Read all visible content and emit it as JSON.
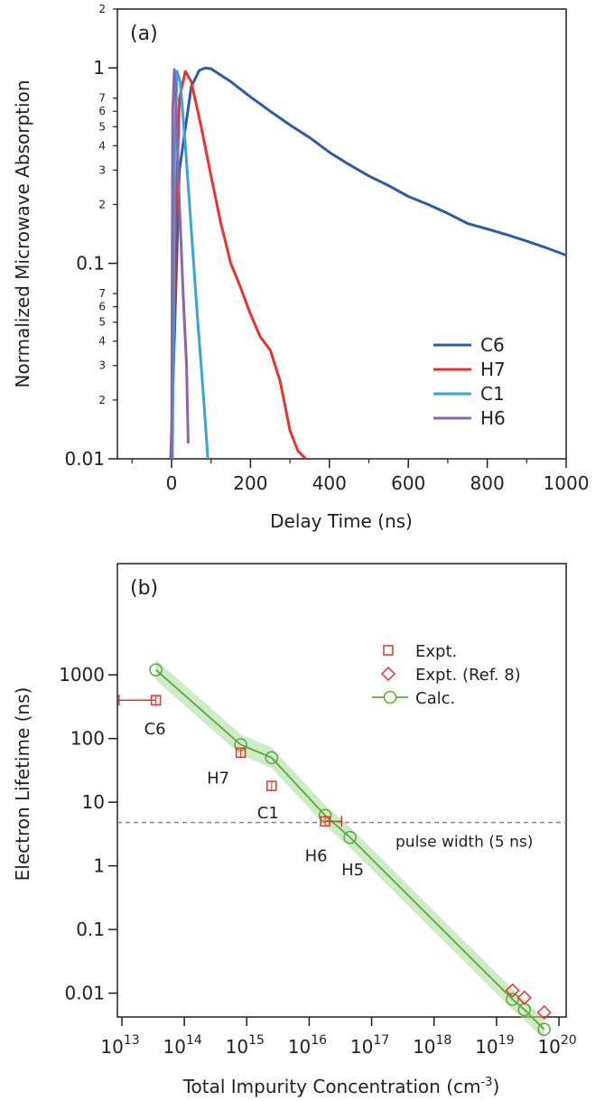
{
  "chart_data": [
    {
      "panel_label": "(a)",
      "type": "line",
      "xlabel": "Delay Time (ns)",
      "ylabel": "Normalized Microwave Absorption",
      "xlim": [
        -130,
        1000
      ],
      "ylim": [
        0.01,
        2
      ],
      "yscale": "log",
      "x_ticks": [
        0,
        200,
        400,
        600,
        800,
        1000
      ],
      "x_tick_labels": [
        "0",
        "200",
        "400",
        "600",
        "800",
        "1000"
      ],
      "y_major_ticks": [
        0.01,
        0.1,
        1
      ],
      "y_major_labels": [
        "0.01",
        "0.1",
        "1"
      ],
      "y_minor_ticks": [
        0.02,
        0.03,
        0.04,
        0.05,
        0.06,
        0.07,
        0.2,
        0.3,
        0.4,
        0.5,
        0.6,
        0.7,
        2,
        3,
        4,
        5,
        6,
        7,
        20
      ],
      "y_minor_labels": [
        "2",
        "3",
        "4",
        "5",
        "6",
        "7",
        "2",
        "3",
        "4",
        "5",
        "6",
        "7",
        "2"
      ],
      "y_minor_label_values": [
        0.02,
        0.03,
        0.04,
        0.05,
        0.06,
        0.07,
        0.2,
        0.3,
        0.4,
        0.5,
        0.6,
        0.7,
        2
      ],
      "legend_position": "bottom-right",
      "series": [
        {
          "name": "C6",
          "color": "#2e5caa",
          "points": [
            [
              -2,
              0.01
            ],
            [
              20,
              0.3
            ],
            [
              50,
              0.8
            ],
            [
              70,
              0.97
            ],
            [
              85,
              1.0
            ],
            [
              100,
              0.99
            ],
            [
              150,
              0.85
            ],
            [
              200,
              0.71
            ],
            [
              250,
              0.6
            ],
            [
              300,
              0.51
            ],
            [
              350,
              0.44
            ],
            [
              400,
              0.37
            ],
            [
              450,
              0.32
            ],
            [
              500,
              0.28
            ],
            [
              550,
              0.25
            ],
            [
              600,
              0.22
            ],
            [
              650,
              0.2
            ],
            [
              700,
              0.18
            ],
            [
              750,
              0.16
            ],
            [
              800,
              0.15
            ],
            [
              850,
              0.14
            ],
            [
              900,
              0.13
            ],
            [
              950,
              0.12
            ],
            [
              1000,
              0.11
            ]
          ]
        },
        {
          "name": "H7",
          "color": "#e8332f",
          "points": [
            [
              0,
              0.01
            ],
            [
              10,
              0.15
            ],
            [
              20,
              0.7
            ],
            [
              35,
              0.96
            ],
            [
              50,
              0.85
            ],
            [
              75,
              0.5
            ],
            [
              100,
              0.28
            ],
            [
              125,
              0.16
            ],
            [
              150,
              0.1
            ],
            [
              175,
              0.075
            ],
            [
              200,
              0.055
            ],
            [
              225,
              0.042
            ],
            [
              250,
              0.036
            ],
            [
              275,
              0.025
            ],
            [
              300,
              0.014
            ],
            [
              320,
              0.011
            ],
            [
              340,
              0.01
            ]
          ]
        },
        {
          "name": "C1",
          "color": "#3aa3dc",
          "points": [
            [
              2,
              0.01
            ],
            [
              8,
              0.4
            ],
            [
              14,
              0.96
            ],
            [
              22,
              0.85
            ],
            [
              35,
              0.4
            ],
            [
              50,
              0.15
            ],
            [
              65,
              0.055
            ],
            [
              80,
              0.022
            ],
            [
              92,
              0.01
            ]
          ]
        },
        {
          "name": "H6",
          "color": "#8a66a8",
          "points": [
            [
              0,
              0.01
            ],
            [
              3,
              0.6
            ],
            [
              7,
              0.98
            ],
            [
              12,
              0.6
            ],
            [
              20,
              0.2
            ],
            [
              30,
              0.065
            ],
            [
              38,
              0.03
            ],
            [
              42,
              0.012
            ]
          ]
        }
      ]
    },
    {
      "panel_label": "(b)",
      "type": "scatter",
      "xlabel": "Total Impurity Concentration (cm",
      "xlabel_superscript": "-3",
      "xlabel_close": ")",
      "ylabel": "Electron Lifetime (ns)",
      "xscale": "log",
      "yscale": "log",
      "xlim": [
        10000000000000.0,
        1e+20
      ],
      "ylim": [
        0.0025,
        3000
      ],
      "x_tick_base": "10",
      "x_tick_exponents": [
        "13",
        "14",
        "15",
        "16",
        "17",
        "18",
        "19",
        "20"
      ],
      "y_ticks": [
        0.01,
        0.1,
        1,
        10,
        100,
        1000
      ],
      "y_tick_labels": [
        "0.01",
        "0.1",
        "1",
        "10",
        "100",
        "1000"
      ],
      "legend_position": "top-right",
      "legend": [
        "Expt.",
        "Expt. (Ref. 8)",
        "Calc."
      ],
      "series": [
        {
          "name": "Expt.",
          "color": "#e8332f",
          "marker": "square",
          "points": [
            {
              "x": 35000000000000.0,
              "y": 400,
              "xerr_low": 9000000000000.0,
              "label": "C6"
            },
            {
              "x": 800000000000000.0,
              "y": 60,
              "label": "H7"
            },
            {
              "x": 2500000000000000.0,
              "y": 18,
              "label": "C1"
            },
            {
              "x": 1.8e+16,
              "y": 5,
              "xerr_high": 3.3e+16,
              "label": "H6"
            }
          ]
        },
        {
          "name": "Expt. (Ref. 8)",
          "color": "#e8332f",
          "marker": "diamond",
          "points": [
            {
              "x": 1.8e+19,
              "y": 0.011
            },
            {
              "x": 2.8e+19,
              "y": 0.0085
            },
            {
              "x": 5.8e+19,
              "y": 0.005
            }
          ]
        },
        {
          "name": "Calc.",
          "color": "#5aa83c",
          "marker": "circle",
          "band_color": "#a8d898",
          "points": [
            {
              "x": 35000000000000.0,
              "y": 1200
            },
            {
              "x": 800000000000000.0,
              "y": 80
            },
            {
              "x": 2500000000000000.0,
              "y": 50
            },
            {
              "x": 1.8e+16,
              "y": 6.2
            },
            {
              "x": 4.5e+16,
              "y": 2.8,
              "label": "H5"
            },
            {
              "x": 1.8e+19,
              "y": 0.008
            },
            {
              "x": 2.8e+19,
              "y": 0.0055
            },
            {
              "x": 5.8e+19,
              "y": 0.0027
            }
          ]
        }
      ],
      "reference_line": {
        "y": 4.8,
        "label": "pulse width (5 ns)",
        "color": "#888888"
      }
    }
  ]
}
